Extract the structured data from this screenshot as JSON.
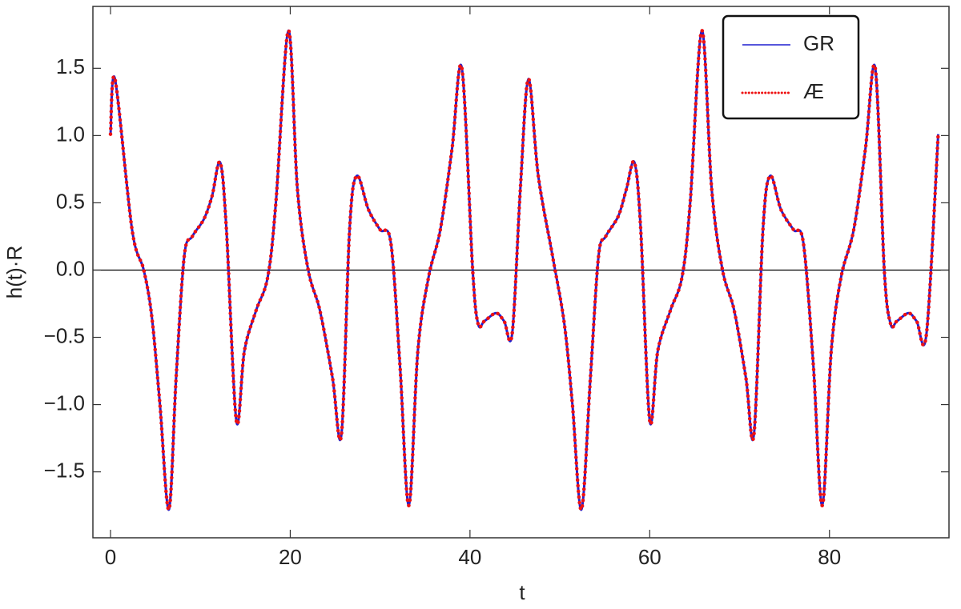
{
  "chart_data": {
    "type": "line",
    "x_label": "t",
    "y_label": "h(t)·R",
    "x": [
      0,
      0.5,
      2.4,
      3.7,
      4.6,
      5.5,
      6.5,
      7.3,
      8.2,
      9.1,
      10.4,
      11.3,
      12.2,
      12.9,
      14,
      14.9,
      16.2,
      17.5,
      18.4,
      19.8,
      20.8,
      22,
      23.3,
      24.7,
      25.7,
      26.6,
      27.4,
      28.7,
      30,
      31.2,
      32.2,
      33.2,
      34.2,
      35.4,
      36.7,
      38,
      39.1,
      40.3,
      40.9,
      41.6,
      42.9,
      43.8,
      44.7,
      45.6,
      46.5,
      47.6,
      49.2,
      50.5,
      51.4,
      52.4,
      53.4,
      54.3,
      55.1,
      56.5,
      57.4,
      58.3,
      59,
      60,
      60.9,
      62.3,
      63.6,
      64.5,
      65.8,
      66.9,
      68.1,
      69.4,
      70.7,
      71.6,
      72.6,
      73.4,
      74.6,
      76,
      77.1,
      78.2,
      79.2,
      80.2,
      81.3,
      82.7,
      84,
      85.1,
      86.1,
      86.8,
      87.5,
      88.8,
      89.7,
      90.8,
      92.1
    ],
    "series": [
      {
        "name": "GR",
        "color": "#1f1fd0",
        "dash": "solid",
        "values": [
          1.01,
          1.42,
          0.3,
          0,
          -0.35,
          -1.0,
          -1.78,
          -0.8,
          0.1,
          0.25,
          0.38,
          0.55,
          0.8,
          0.3,
          -1.12,
          -0.6,
          -0.3,
          -0.05,
          0.5,
          1.78,
          0.6,
          0,
          -0.3,
          -0.8,
          -1.22,
          0.3,
          0.7,
          0.45,
          0.3,
          0.2,
          -0.7,
          -1.75,
          -0.6,
          -0.05,
          0.3,
          0.9,
          1.5,
          0,
          -0.4,
          -0.38,
          -0.32,
          -0.38,
          -0.47,
          0.6,
          1.42,
          0.7,
          0.1,
          -0.4,
          -1.0,
          -1.78,
          -0.8,
          0.1,
          0.25,
          0.4,
          0.6,
          0.8,
          0.3,
          -1.12,
          -0.6,
          -0.3,
          -0.05,
          0.5,
          1.78,
          0.6,
          0,
          -0.3,
          -0.8,
          -1.22,
          0.3,
          0.7,
          0.45,
          0.3,
          0.2,
          -0.7,
          -1.75,
          -0.6,
          -0.05,
          0.3,
          0.9,
          1.5,
          0,
          -0.4,
          -0.38,
          -0.32,
          -0.38,
          -0.47,
          1.01
        ]
      },
      {
        "name": "Æ",
        "color": "#ee1111",
        "dash": "dotted",
        "values": [
          1.01,
          1.42,
          0.3,
          0,
          -0.35,
          -1.0,
          -1.78,
          -0.8,
          0.1,
          0.25,
          0.38,
          0.55,
          0.8,
          0.3,
          -1.12,
          -0.6,
          -0.3,
          -0.05,
          0.5,
          1.78,
          0.6,
          0,
          -0.3,
          -0.8,
          -1.22,
          0.3,
          0.7,
          0.45,
          0.3,
          0.2,
          -0.7,
          -1.75,
          -0.6,
          -0.05,
          0.3,
          0.9,
          1.5,
          0,
          -0.4,
          -0.38,
          -0.32,
          -0.38,
          -0.47,
          0.6,
          1.42,
          0.7,
          0.1,
          -0.4,
          -1.0,
          -1.78,
          -0.8,
          0.1,
          0.25,
          0.4,
          0.6,
          0.8,
          0.3,
          -1.12,
          -0.6,
          -0.3,
          -0.05,
          0.5,
          1.78,
          0.6,
          0,
          -0.3,
          -0.8,
          -1.22,
          0.3,
          0.7,
          0.45,
          0.3,
          0.2,
          -0.7,
          -1.75,
          -0.6,
          -0.05,
          0.3,
          0.9,
          1.5,
          0,
          -0.4,
          -0.38,
          -0.32,
          -0.38,
          -0.47,
          1.01
        ]
      }
    ],
    "xlim": [
      -1.96,
      93.3
    ],
    "xticks": [
      0,
      20,
      40,
      60,
      80
    ],
    "ylim": [
      -1.99,
      1.96
    ],
    "yticks": [
      {
        "value": -1.5,
        "label": "−1.5"
      },
      {
        "value": -1,
        "label": "−1.0"
      },
      {
        "value": -0.5,
        "label": "−0.5"
      },
      {
        "value": 0,
        "label": "0.0"
      },
      0.5,
      {
        "value": 1,
        "label": "1.0"
      },
      1.5
    ],
    "legend": "upper right"
  }
}
